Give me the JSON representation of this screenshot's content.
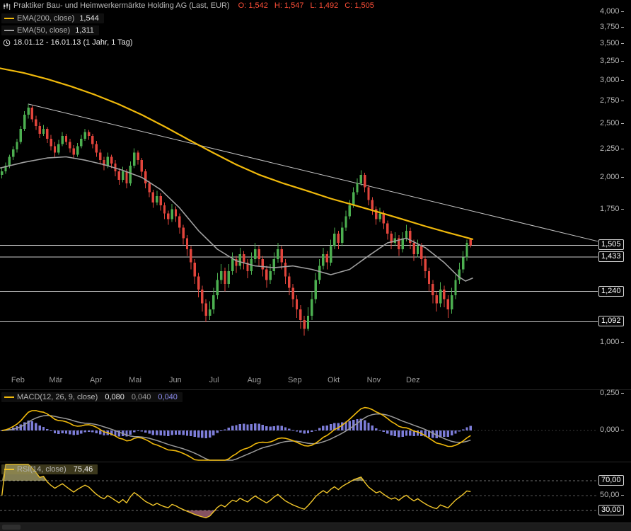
{
  "colors": {
    "background": "#000000",
    "candle_up": "#4caf50",
    "candle_down": "#e2453c",
    "ema200": "#f0b90b",
    "ema50": "#a0a0a0",
    "trendline": "#dcdcdc",
    "level_line": "#f0f0f0",
    "macd_line": "#f0b90b",
    "macd_signal": "#9a9a9a",
    "macd_hist": "#8b8bf0",
    "rsi_line": "#f0c52a",
    "rsi_overbought_fill": "rgba(235,225,150,0.55)",
    "rsi_oversold_fill": "rgba(242,150,176,0.55)",
    "ohlc_text": "#ff4f38",
    "axis_text": "#b5b5b5"
  },
  "price_panel": {
    "title": "Praktiker Bau- und Heimwerkermärkte Holding AG (Last, EUR)",
    "ohlc": [
      "O: 1,542",
      "H: 1,547",
      "L: 1,492",
      "C: 1,505"
    ],
    "legend": [
      {
        "label": "EMA(200, close)",
        "value": "1,544",
        "color": "#f0b90b"
      },
      {
        "label": "EMA(50, close)",
        "value": "1,311",
        "color": "#a0a0a0"
      }
    ],
    "range_text": "18.01.12 - 16.01.13 (1 Jahr, 1 Tag)",
    "y_ticks": [
      {
        "label": "4,000",
        "value": 4.0
      },
      {
        "label": "3,750",
        "value": 3.75
      },
      {
        "label": "3,500",
        "value": 3.5
      },
      {
        "label": "3,250",
        "value": 3.25
      },
      {
        "label": "3,000",
        "value": 3.0
      },
      {
        "label": "2,750",
        "value": 2.75
      },
      {
        "label": "2,500",
        "value": 2.5
      },
      {
        "label": "2,250",
        "value": 2.25
      },
      {
        "label": "2,000",
        "value": 2.0
      },
      {
        "label": "1,750",
        "value": 1.75
      },
      {
        "label": "1,000",
        "value": 1.0
      }
    ],
    "level_tags": [
      {
        "label": "1,505",
        "value": 1.505
      },
      {
        "label": "1,433",
        "value": 1.433
      },
      {
        "label": "1,240",
        "value": 1.24
      },
      {
        "label": "1,092",
        "value": 1.092
      }
    ],
    "x_months": [
      {
        "label": "Feb",
        "f": 0.038
      },
      {
        "label": "Mär",
        "f": 0.118
      },
      {
        "label": "Apr",
        "f": 0.203
      },
      {
        "label": "Mai",
        "f": 0.286
      },
      {
        "label": "Jun",
        "f": 0.371
      },
      {
        "label": "Jul",
        "f": 0.453
      },
      {
        "label": "Aug",
        "f": 0.538
      },
      {
        "label": "Sep",
        "f": 0.624
      },
      {
        "label": "Okt",
        "f": 0.706
      },
      {
        "label": "Nov",
        "f": 0.791
      },
      {
        "label": "Dez",
        "f": 0.874
      }
    ]
  },
  "macd_panel": {
    "label": "MACD(12, 26, 9, close)",
    "values": [
      "0,080",
      "0,040",
      "0,040"
    ],
    "y_ticks": [
      {
        "label": "0,250",
        "value": 0.25
      },
      {
        "label": "0,000",
        "value": 0.0
      }
    ]
  },
  "rsi_panel": {
    "label": "RSI(14, close)",
    "value": "75,46",
    "y_ticks": [
      {
        "label": "70,00",
        "value": 70,
        "boxed": true
      },
      {
        "label": "50,00",
        "value": 50,
        "boxed": false
      },
      {
        "label": "30,00",
        "value": 30,
        "boxed": true
      }
    ]
  },
  "chart_data": [
    {
      "id": "price",
      "type": "candlestick",
      "title": "Praktiker Bau- und Heimwerkermärkte Holding AG",
      "unit": "EUR",
      "x_range": {
        "start": "18.01.12",
        "end": "16.01.13",
        "period": "1 Tag",
        "span": "1 Jahr"
      },
      "y_scale": "log",
      "ylim": [
        1.0,
        4.0
      ],
      "grid": false,
      "last": {
        "open": 1.542,
        "high": 1.547,
        "low": 1.492,
        "close": 1.505
      },
      "levels": [
        1.505,
        1.433,
        1.24,
        1.092
      ],
      "trendline": {
        "x1_frac": 0.047,
        "p1": 2.72,
        "x2_frac": 1.0,
        "p2": 1.53
      },
      "ema200": {
        "period": 200,
        "last": 1.544,
        "samples": [
          [
            0,
            3.16
          ],
          [
            0.05,
            3.1
          ],
          [
            0.1,
            3.02
          ],
          [
            0.15,
            2.93
          ],
          [
            0.2,
            2.83
          ],
          [
            0.25,
            2.72
          ],
          [
            0.3,
            2.6
          ],
          [
            0.35,
            2.47
          ],
          [
            0.4,
            2.34
          ],
          [
            0.45,
            2.22
          ],
          [
            0.5,
            2.11
          ],
          [
            0.55,
            2.02
          ],
          [
            0.6,
            1.95
          ],
          [
            0.65,
            1.89
          ],
          [
            0.7,
            1.83
          ],
          [
            0.75,
            1.78
          ],
          [
            0.8,
            1.73
          ],
          [
            0.85,
            1.68
          ],
          [
            0.9,
            1.63
          ],
          [
            0.95,
            1.585
          ],
          [
            1,
            1.544
          ]
        ]
      },
      "ema50": {
        "period": 50,
        "last": 1.311,
        "samples": [
          [
            0,
            2.08
          ],
          [
            0.05,
            2.13
          ],
          [
            0.1,
            2.17
          ],
          [
            0.14,
            2.18
          ],
          [
            0.18,
            2.15
          ],
          [
            0.22,
            2.11
          ],
          [
            0.26,
            2.06
          ],
          [
            0.3,
            2.0
          ],
          [
            0.34,
            1.9
          ],
          [
            0.38,
            1.76
          ],
          [
            0.42,
            1.6
          ],
          [
            0.46,
            1.48
          ],
          [
            0.5,
            1.41
          ],
          [
            0.54,
            1.38
          ],
          [
            0.58,
            1.37
          ],
          [
            0.62,
            1.38
          ],
          [
            0.66,
            1.36
          ],
          [
            0.7,
            1.33
          ],
          [
            0.74,
            1.36
          ],
          [
            0.78,
            1.44
          ],
          [
            0.82,
            1.52
          ],
          [
            0.86,
            1.55
          ],
          [
            0.9,
            1.49
          ],
          [
            0.94,
            1.4
          ],
          [
            0.97,
            1.32
          ],
          [
            0.985,
            1.295
          ],
          [
            1,
            1.311
          ]
        ]
      },
      "candles": [
        [
          2.02,
          2.08,
          1.99,
          2.05
        ],
        [
          2.05,
          2.13,
          2.03,
          2.1
        ],
        [
          2.1,
          2.2,
          2.08,
          2.18
        ],
        [
          2.18,
          2.28,
          2.15,
          2.25
        ],
        [
          2.25,
          2.35,
          2.22,
          2.32
        ],
        [
          2.32,
          2.48,
          2.3,
          2.45
        ],
        [
          2.45,
          2.64,
          2.43,
          2.6
        ],
        [
          2.6,
          2.72,
          2.56,
          2.68
        ],
        [
          2.68,
          2.7,
          2.52,
          2.55
        ],
        [
          2.55,
          2.59,
          2.44,
          2.48
        ],
        [
          2.48,
          2.52,
          2.36,
          2.4
        ],
        [
          2.4,
          2.49,
          2.38,
          2.45
        ],
        [
          2.45,
          2.47,
          2.31,
          2.35
        ],
        [
          2.35,
          2.39,
          2.24,
          2.28
        ],
        [
          2.28,
          2.32,
          2.18,
          2.22
        ],
        [
          2.22,
          2.34,
          2.2,
          2.3
        ],
        [
          2.3,
          2.42,
          2.28,
          2.38
        ],
        [
          2.38,
          2.4,
          2.29,
          2.32
        ],
        [
          2.32,
          2.35,
          2.22,
          2.26
        ],
        [
          2.26,
          2.29,
          2.16,
          2.2
        ],
        [
          2.2,
          2.31,
          2.18,
          2.28
        ],
        [
          2.28,
          2.39,
          2.26,
          2.35
        ],
        [
          2.35,
          2.45,
          2.33,
          2.42
        ],
        [
          2.42,
          2.44,
          2.34,
          2.38
        ],
        [
          2.38,
          2.4,
          2.26,
          2.3
        ],
        [
          2.3,
          2.33,
          2.18,
          2.22
        ],
        [
          2.22,
          2.25,
          2.11,
          2.15
        ],
        [
          2.15,
          2.18,
          2.06,
          2.1
        ],
        [
          2.1,
          2.22,
          2.08,
          2.18
        ],
        [
          2.18,
          2.2,
          2.08,
          2.12
        ],
        [
          2.12,
          2.15,
          2.01,
          2.05
        ],
        [
          2.05,
          2.08,
          1.94,
          1.98
        ],
        [
          1.98,
          2.09,
          1.96,
          2.05
        ],
        [
          2.05,
          2.07,
          1.91,
          1.95
        ],
        [
          1.95,
          2.14,
          1.93,
          2.1
        ],
        [
          2.1,
          2.26,
          2.08,
          2.22
        ],
        [
          2.22,
          2.24,
          2.11,
          2.15
        ],
        [
          2.15,
          2.17,
          2.01,
          2.05
        ],
        [
          2.05,
          2.07,
          1.91,
          1.95
        ],
        [
          1.95,
          1.97,
          1.84,
          1.88
        ],
        [
          1.88,
          1.9,
          1.76,
          1.8
        ],
        [
          1.8,
          1.89,
          1.78,
          1.85
        ],
        [
          1.85,
          1.87,
          1.74,
          1.78
        ],
        [
          1.78,
          1.8,
          1.68,
          1.72
        ],
        [
          1.72,
          1.74,
          1.64,
          1.68
        ],
        [
          1.68,
          1.79,
          1.66,
          1.75
        ],
        [
          1.75,
          1.77,
          1.66,
          1.7
        ],
        [
          1.7,
          1.72,
          1.58,
          1.62
        ],
        [
          1.62,
          1.64,
          1.51,
          1.55
        ],
        [
          1.55,
          1.57,
          1.44,
          1.48
        ],
        [
          1.48,
          1.5,
          1.36,
          1.4
        ],
        [
          1.4,
          1.42,
          1.28,
          1.32
        ],
        [
          1.32,
          1.34,
          1.21,
          1.25
        ],
        [
          1.25,
          1.27,
          1.14,
          1.18
        ],
        [
          1.18,
          1.2,
          1.09,
          1.12
        ],
        [
          1.12,
          1.19,
          1.1,
          1.15
        ],
        [
          1.15,
          1.26,
          1.13,
          1.22
        ],
        [
          1.22,
          1.34,
          1.2,
          1.3
        ],
        [
          1.3,
          1.39,
          1.28,
          1.35
        ],
        [
          1.35,
          1.37,
          1.24,
          1.28
        ],
        [
          1.28,
          1.39,
          1.26,
          1.35
        ],
        [
          1.35,
          1.46,
          1.33,
          1.42
        ],
        [
          1.42,
          1.44,
          1.34,
          1.38
        ],
        [
          1.38,
          1.49,
          1.36,
          1.45
        ],
        [
          1.45,
          1.47,
          1.36,
          1.4
        ],
        [
          1.4,
          1.42,
          1.31,
          1.35
        ],
        [
          1.35,
          1.46,
          1.33,
          1.42
        ],
        [
          1.42,
          1.52,
          1.4,
          1.48
        ],
        [
          1.48,
          1.5,
          1.38,
          1.42
        ],
        [
          1.42,
          1.44,
          1.32,
          1.36
        ],
        [
          1.36,
          1.38,
          1.26,
          1.3
        ],
        [
          1.3,
          1.39,
          1.28,
          1.35
        ],
        [
          1.35,
          1.46,
          1.33,
          1.42
        ],
        [
          1.42,
          1.52,
          1.4,
          1.48
        ],
        [
          1.48,
          1.5,
          1.36,
          1.4
        ],
        [
          1.4,
          1.42,
          1.28,
          1.32
        ],
        [
          1.32,
          1.34,
          1.22,
          1.26
        ],
        [
          1.26,
          1.28,
          1.16,
          1.2
        ],
        [
          1.2,
          1.22,
          1.11,
          1.15
        ],
        [
          1.15,
          1.17,
          1.06,
          1.1
        ],
        [
          1.1,
          1.12,
          1.03,
          1.06
        ],
        [
          1.06,
          1.16,
          1.05,
          1.12
        ],
        [
          1.12,
          1.24,
          1.1,
          1.2
        ],
        [
          1.2,
          1.34,
          1.18,
          1.3
        ],
        [
          1.3,
          1.42,
          1.28,
          1.38
        ],
        [
          1.38,
          1.49,
          1.36,
          1.45
        ],
        [
          1.45,
          1.47,
          1.36,
          1.4
        ],
        [
          1.4,
          1.54,
          1.38,
          1.5
        ],
        [
          1.5,
          1.62,
          1.48,
          1.58
        ],
        [
          1.58,
          1.6,
          1.48,
          1.52
        ],
        [
          1.52,
          1.66,
          1.5,
          1.62
        ],
        [
          1.62,
          1.74,
          1.6,
          1.7
        ],
        [
          1.7,
          1.82,
          1.68,
          1.78
        ],
        [
          1.78,
          1.92,
          1.76,
          1.88
        ],
        [
          1.88,
          1.99,
          1.86,
          1.95
        ],
        [
          1.95,
          2.06,
          1.93,
          2.02
        ],
        [
          2.02,
          2.04,
          1.88,
          1.92
        ],
        [
          1.92,
          1.94,
          1.78,
          1.82
        ],
        [
          1.82,
          1.84,
          1.71,
          1.75
        ],
        [
          1.75,
          1.77,
          1.64,
          1.68
        ],
        [
          1.68,
          1.76,
          1.66,
          1.72
        ],
        [
          1.72,
          1.74,
          1.61,
          1.65
        ],
        [
          1.65,
          1.67,
          1.54,
          1.58
        ],
        [
          1.58,
          1.6,
          1.48,
          1.52
        ],
        [
          1.52,
          1.59,
          1.5,
          1.55
        ],
        [
          1.55,
          1.57,
          1.44,
          1.48
        ],
        [
          1.48,
          1.59,
          1.46,
          1.55
        ],
        [
          1.55,
          1.64,
          1.53,
          1.6
        ],
        [
          1.6,
          1.62,
          1.48,
          1.52
        ],
        [
          1.52,
          1.54,
          1.41,
          1.45
        ],
        [
          1.45,
          1.54,
          1.43,
          1.5
        ],
        [
          1.5,
          1.52,
          1.38,
          1.42
        ],
        [
          1.42,
          1.44,
          1.31,
          1.35
        ],
        [
          1.35,
          1.37,
          1.24,
          1.28
        ],
        [
          1.28,
          1.3,
          1.18,
          1.22
        ],
        [
          1.22,
          1.24,
          1.14,
          1.18
        ],
        [
          1.18,
          1.29,
          1.16,
          1.25
        ],
        [
          1.25,
          1.27,
          1.16,
          1.2
        ],
        [
          1.2,
          1.22,
          1.11,
          1.15
        ],
        [
          1.15,
          1.26,
          1.13,
          1.22
        ],
        [
          1.22,
          1.33,
          1.2,
          1.3
        ],
        [
          1.3,
          1.4,
          1.28,
          1.36
        ],
        [
          1.36,
          1.47,
          1.34,
          1.43
        ],
        [
          1.43,
          1.54,
          1.41,
          1.52
        ],
        [
          1.542,
          1.547,
          1.492,
          1.505
        ]
      ]
    },
    {
      "id": "macd",
      "type": "line+histogram",
      "params": {
        "fast": 12,
        "slow": 26,
        "signal": 9,
        "source": "close"
      },
      "derived_from": "price.candles",
      "last": {
        "macd": 0.08,
        "signal": 0.04,
        "hist": 0.04
      },
      "ylim": [
        -0.2,
        0.27
      ],
      "yticks": [
        0.25,
        0.0
      ],
      "grid": false
    },
    {
      "id": "rsi",
      "type": "line",
      "params": {
        "period": 14,
        "source": "close"
      },
      "derived_from": "price.candles",
      "last": 75.46,
      "bands": [
        70,
        50,
        30
      ],
      "ylim": [
        10,
        95
      ],
      "grid": false
    }
  ]
}
